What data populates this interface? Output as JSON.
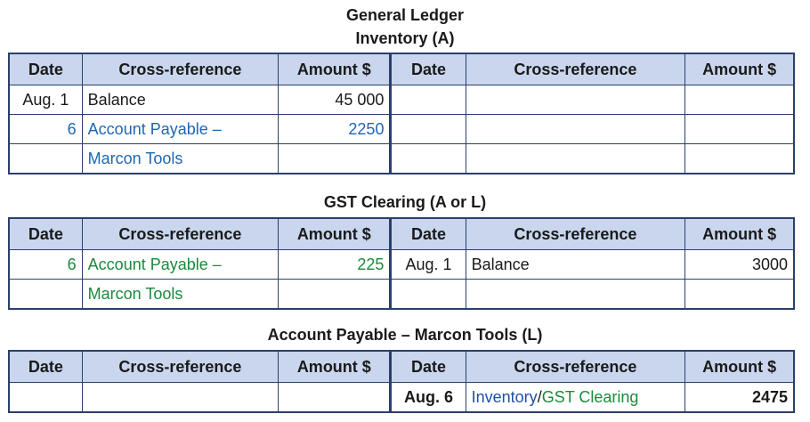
{
  "header": {
    "title": "General Ledger"
  },
  "columns": [
    "Date",
    "Cross-reference",
    "Amount $",
    "Date",
    "Cross-reference",
    "Amount $"
  ],
  "colors": {
    "header_bg": "#c9d6ee",
    "border": "#2b3f6b",
    "inventory_entry": "#1f66b3",
    "gst_entry": "#1a8a3a"
  },
  "inventory": {
    "title": "Inventory (A)",
    "rows": [
      {
        "date": "Aug. 1",
        "ref": "Balance",
        "amount": "45 000"
      },
      {
        "date": "6",
        "ref": "Account Payable –",
        "amount": "2250"
      },
      {
        "date": "",
        "ref": "Marcon Tools",
        "amount": ""
      }
    ]
  },
  "gst": {
    "title": "GST Clearing (A or L)",
    "rows": [
      {
        "date": "6",
        "ref": "Account Payable –",
        "amount": "225",
        "date2": "Aug. 1",
        "ref2": "Balance",
        "amount2": "3000"
      },
      {
        "date": "",
        "ref": "Marcon Tools",
        "amount": ""
      }
    ]
  },
  "payable": {
    "title": "Account Payable – Marcon Tools (L)",
    "rows": [
      {
        "date2": "Aug. 6",
        "ref2_part1": "Inventory",
        "ref2_sep": "/",
        "ref2_part2": "GST Clearing",
        "amount2": "2475"
      }
    ]
  }
}
